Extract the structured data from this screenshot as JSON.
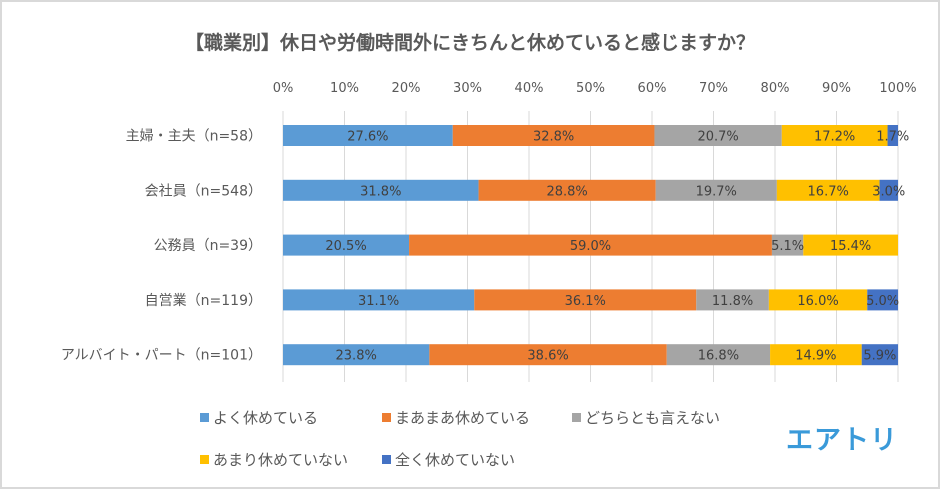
{
  "chart_data": {
    "type": "bar",
    "orientation": "horizontal",
    "stacked": "percent",
    "title": "【職業別】休日や労働時間外にきちんと休めていると感じますか？",
    "xlabel": "",
    "ylabel": "",
    "xlim": [
      0,
      100
    ],
    "x_ticks": [
      "0%",
      "10%",
      "20%",
      "30%",
      "40%",
      "50%",
      "60%",
      "70%",
      "80%",
      "90%",
      "100%"
    ],
    "x_axis_position": "top",
    "grid": true,
    "legend_position": "bottom",
    "categories": [
      "主婦・主夫（n=58）",
      "会社員（n=548）",
      "公務員（n=39）",
      "自営業（n=119）",
      "アルバイト・パート（n=101）"
    ],
    "series": [
      {
        "name": "よく休めている",
        "color": "#5B9BD5",
        "values": [
          27.6,
          31.8,
          20.5,
          31.1,
          23.8
        ],
        "labels": [
          "27.6%",
          "31.8%",
          "20.5%",
          "31.1%",
          "23.8%"
        ]
      },
      {
        "name": "まあまあ休めている",
        "color": "#ED7D31",
        "values": [
          32.8,
          28.8,
          59.0,
          36.1,
          38.6
        ],
        "labels": [
          "32.8%",
          "28.8%",
          "59.0%",
          "36.1%",
          "38.6%"
        ]
      },
      {
        "name": "どちらとも言えない",
        "color": "#A5A5A5",
        "values": [
          20.7,
          19.7,
          5.1,
          11.8,
          16.8
        ],
        "labels": [
          "20.7%",
          "19.7%",
          "5.1%",
          "11.8%",
          "16.8%"
        ]
      },
      {
        "name": "あまり休めていない",
        "color": "#FFC000",
        "values": [
          17.2,
          16.7,
          15.4,
          16.0,
          14.9
        ],
        "labels": [
          "17.2%",
          "16.7%",
          "15.4%",
          "16.0%",
          "14.9%"
        ]
      },
      {
        "name": "全く休めていない",
        "color": "#4472C4",
        "values": [
          1.7,
          3.0,
          0,
          5.0,
          5.9
        ],
        "labels": [
          "1.7%",
          "3.0%",
          null,
          "5.0%",
          "5.9%"
        ]
      }
    ]
  },
  "logo": {
    "text": "エアトリ",
    "color": "#3A9AD9"
  }
}
